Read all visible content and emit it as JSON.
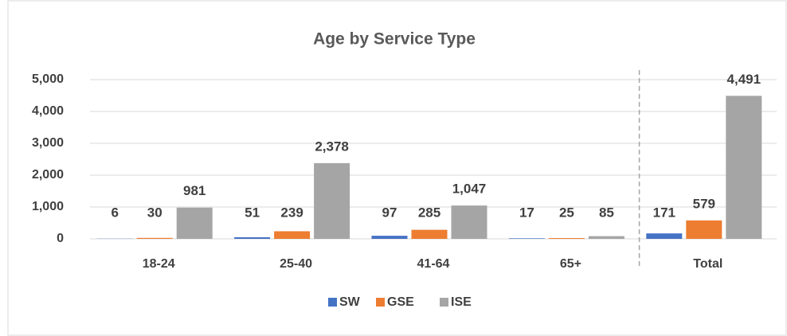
{
  "chart_data": {
    "type": "bar",
    "title": "Age by Service Type",
    "categories": [
      "18-24",
      "25-40",
      "41-64",
      "65+",
      "Total"
    ],
    "series": [
      {
        "name": "SW",
        "color": "#4472c4",
        "values": [
          6,
          51,
          97,
          17,
          171
        ]
      },
      {
        "name": "GSE",
        "color": "#ed7d31",
        "values": [
          30,
          239,
          285,
          25,
          579
        ]
      },
      {
        "name": "ISE",
        "color": "#a5a5a5",
        "values": [
          981,
          2378,
          1047,
          85,
          4491
        ],
        "value_labels": [
          "981",
          "2,378",
          "1,047",
          "85",
          "4,491"
        ]
      }
    ],
    "ylim": [
      0,
      5000
    ],
    "yticks": [
      0,
      {
        "value": 1000,
        "label": "1,000"
      },
      {
        "value": 2000,
        "label": "2,000"
      },
      {
        "value": 3000,
        "label": "3,000"
      },
      {
        "value": 4000,
        "label": "4,000"
      },
      {
        "value": 5000,
        "label": "5,000"
      }
    ],
    "grid": true,
    "legend": "bottom"
  }
}
